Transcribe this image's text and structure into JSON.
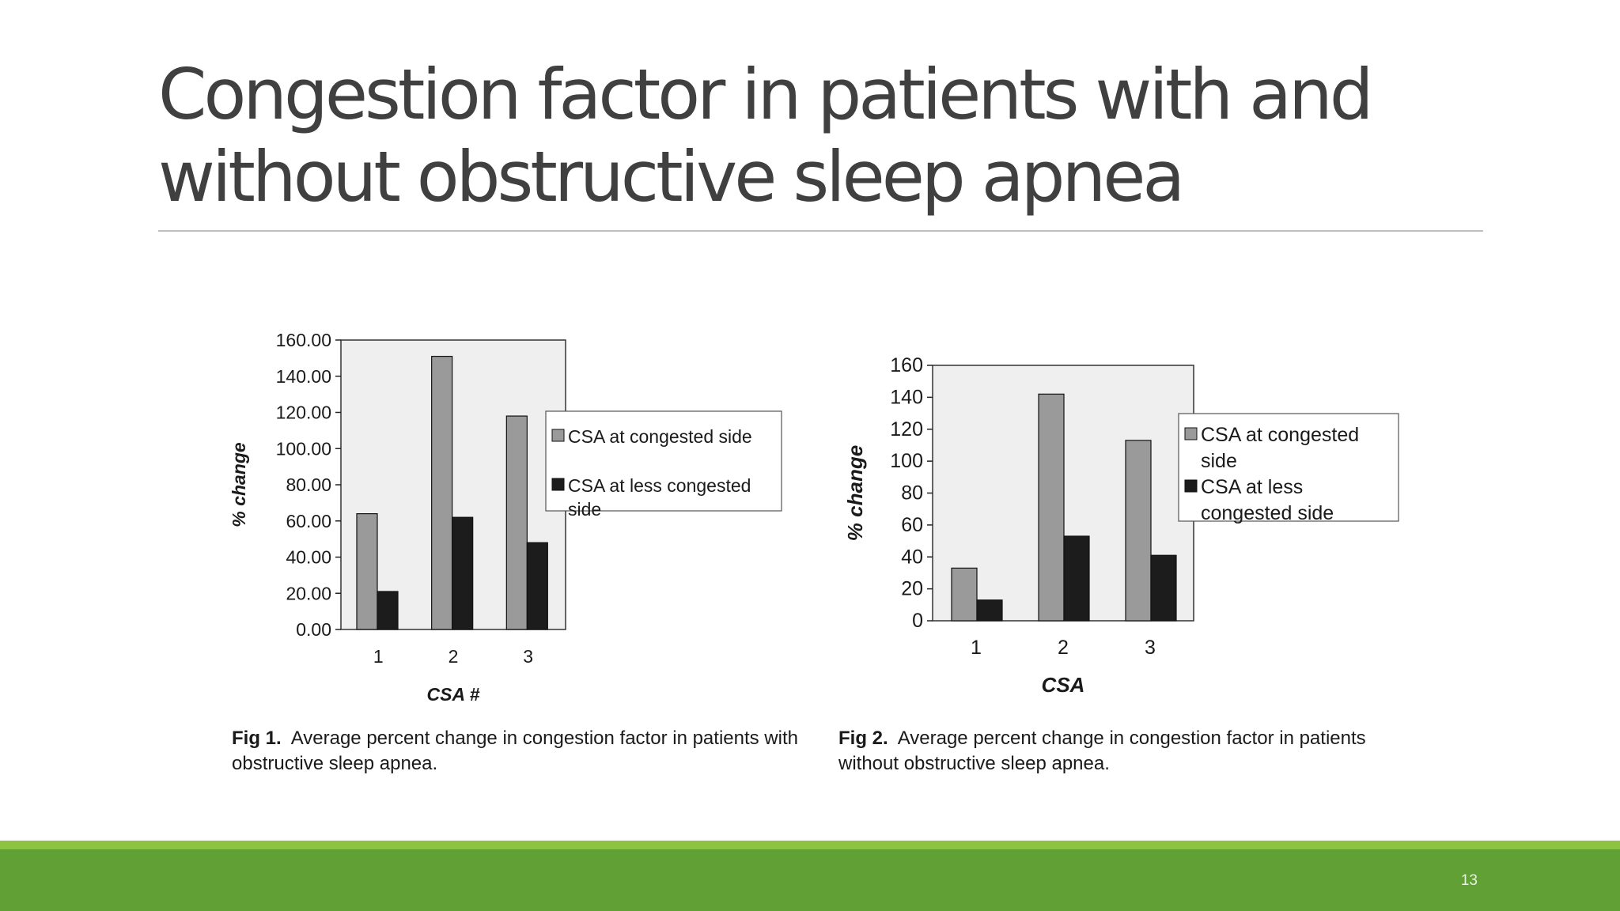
{
  "slide": {
    "title": "Congestion factor in patients with and without obstructive sleep apnea",
    "number": "13"
  },
  "colors": {
    "title": "#404040",
    "series_light": "#9a9a9a",
    "series_dark": "#1c1c1c",
    "plot_bg": "#efefef",
    "footer_green": "#60a035",
    "accent_green": "#8cc43f"
  },
  "figures": [
    {
      "caption_label": "Fig 1.",
      "caption_text": "Average percent change in congestion factor in patients with obstructive sleep apnea."
    },
    {
      "caption_label": "Fig 2.",
      "caption_text": "Average percent change in congestion factor in patients without obstructive sleep apnea."
    }
  ],
  "chart_data": [
    {
      "type": "bar",
      "categories": [
        "1",
        "2",
        "3"
      ],
      "series": [
        {
          "name": "CSA at congested side",
          "values": [
            64,
            151,
            118
          ]
        },
        {
          "name": "CSA at less congested side",
          "values": [
            21,
            62,
            48
          ]
        }
      ],
      "legend_lines": [
        [
          "CSA at congested side"
        ],
        [
          "CSA at less congested",
          "side"
        ]
      ],
      "xlabel": "CSA #",
      "ylabel": "% change",
      "ylim": [
        0,
        160
      ],
      "yticks": [
        0,
        20,
        40,
        60,
        80,
        100,
        120,
        140,
        160
      ],
      "ytick_labels": [
        "0.00",
        "20.00",
        "40.00",
        "60.00",
        "80.00",
        "100.00",
        "120.00",
        "140.00",
        "160.00"
      ],
      "grid": false,
      "legend_position": "right"
    },
    {
      "type": "bar",
      "categories": [
        "1",
        "2",
        "3"
      ],
      "series": [
        {
          "name": "CSA at congested side",
          "values": [
            33,
            142,
            113
          ]
        },
        {
          "name": "CSA at less congested side",
          "values": [
            13,
            53,
            41
          ]
        }
      ],
      "legend_lines": [
        [
          "CSA at congested",
          "side"
        ],
        [
          "CSA at less",
          "congested side"
        ]
      ],
      "xlabel": "CSA",
      "ylabel": "% change",
      "ylim": [
        0,
        160
      ],
      "yticks": [
        0,
        20,
        40,
        60,
        80,
        100,
        120,
        140,
        160
      ],
      "ytick_labels": [
        "0",
        "20",
        "40",
        "60",
        "80",
        "100",
        "120",
        "140",
        "160"
      ],
      "grid": false,
      "legend_position": "right"
    }
  ]
}
